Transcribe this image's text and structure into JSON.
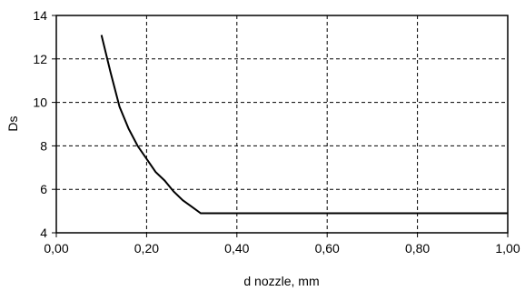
{
  "chart_data": {
    "type": "line",
    "title": "",
    "xlabel": "d nozzle, mm",
    "ylabel": "Ds",
    "xlim": [
      0,
      1
    ],
    "ylim": [
      4,
      14
    ],
    "grid": true,
    "x_ticks": [
      "0,00",
      "0,20",
      "0,40",
      "0,60",
      "0,80",
      "1,00"
    ],
    "x_tick_values": [
      0,
      0.2,
      0.4,
      0.6,
      0.8,
      1.0
    ],
    "y_ticks": [
      "4",
      "6",
      "8",
      "10",
      "12",
      "14"
    ],
    "y_tick_values": [
      4,
      6,
      8,
      10,
      12,
      14
    ],
    "series": [
      {
        "x": [
          0.1,
          0.12,
          0.14,
          0.16,
          0.18,
          0.2,
          0.22,
          0.24,
          0.26,
          0.28,
          0.3,
          0.32,
          0.4,
          0.6,
          0.8,
          1.0
        ],
        "y": [
          13.1,
          11.4,
          9.8,
          8.8,
          8.0,
          7.4,
          6.8,
          6.4,
          5.9,
          5.5,
          5.2,
          4.9,
          4.9,
          4.9,
          4.9,
          4.9
        ]
      }
    ]
  }
}
